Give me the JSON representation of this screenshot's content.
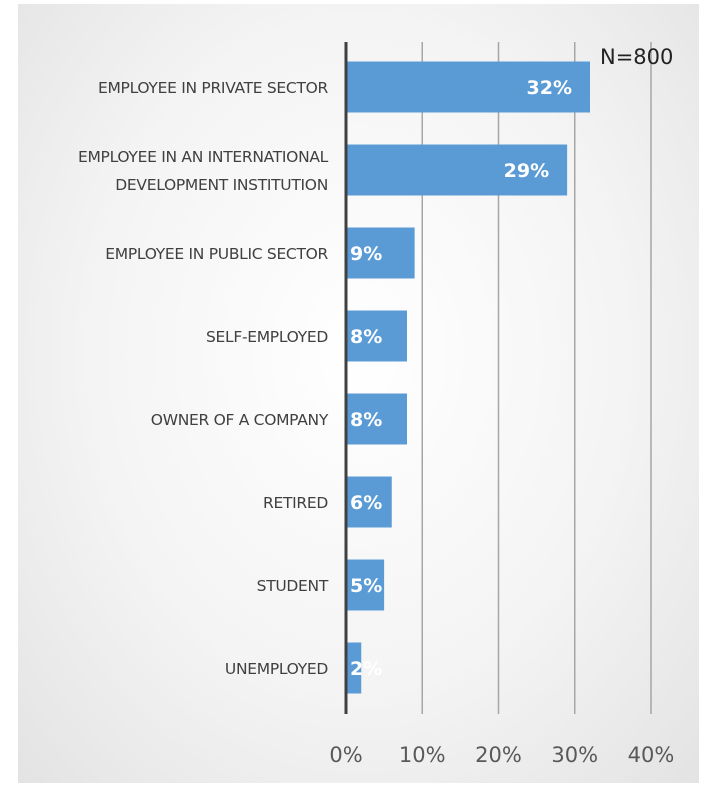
{
  "chart_data": {
    "type": "bar",
    "orientation": "horizontal",
    "annotation": "N=800",
    "categories": [
      [
        "EMPLOYEE IN PRIVATE SECTOR"
      ],
      [
        "EMPLOYEE IN AN INTERNATIONAL",
        "DEVELOPMENT INSTITUTION"
      ],
      [
        "EMPLOYEE IN PUBLIC SECTOR"
      ],
      [
        "SELF-EMPLOYED"
      ],
      [
        "OWNER OF A COMPANY"
      ],
      [
        "RETIRED"
      ],
      [
        "STUDENT"
      ],
      [
        "UNEMPLOYED"
      ]
    ],
    "values": [
      32,
      29,
      9,
      8,
      8,
      6,
      5,
      2
    ],
    "data_labels": [
      "32%",
      "29%",
      "9%",
      "8%",
      "8%",
      "6%",
      "5%",
      "2%"
    ],
    "x_ticks": [
      0,
      10,
      20,
      30,
      40
    ],
    "x_tick_labels": [
      "0%",
      "10%",
      "20%",
      "30%",
      "40%"
    ],
    "xlim": [
      0,
      40
    ],
    "grid": "vertical",
    "bar_color": "#5b9bd5",
    "axis_color": "#404040",
    "grid_color": "#a6a6a6"
  }
}
